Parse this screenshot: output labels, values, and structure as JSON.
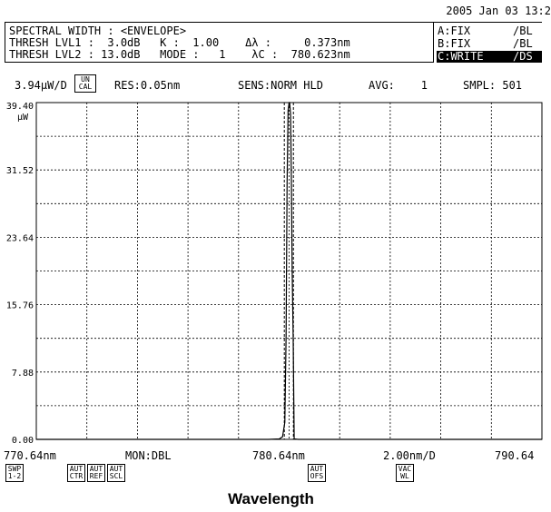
{
  "datetime": "2005 Jan 03 13:2",
  "header": {
    "line1": "SPECTRAL WIDTH : <ENVELOPE>",
    "line2": "THRESH LVL1 :  3.0dB   K :  1.00    Δλ :     0.373nm",
    "line3": "THRESH LVL2 : 13.0dB   MODE :   1    λC :  780.623nm"
  },
  "traces": [
    {
      "label": "A:FIX",
      "mode": "/BL",
      "active": false
    },
    {
      "label": "B:FIX",
      "mode": "/BL",
      "active": false
    },
    {
      "label": "C:WRITE",
      "mode": "/DS",
      "active": true
    }
  ],
  "status": {
    "scale": "3.94μW/D",
    "uncal": "UN\nCAL",
    "res": "RES:0.05nm",
    "sens": "SENS:NORM HLD",
    "avg": "AVG:    1",
    "smpl": "SMPL: 501"
  },
  "bottom": {
    "start": "770.64nm",
    "mon": "MON:DBL",
    "center": "780.64nm",
    "span": "2.00nm/D",
    "stop": "790.64"
  },
  "softkeys": [
    {
      "label": "SWP\n1-2"
    },
    {
      "label": "AUT\nCTR"
    },
    {
      "label": "AUT\nREF"
    },
    {
      "label": "AUT\nSCL"
    },
    {
      "label": "AUT\nOFS"
    },
    {
      "label": "VAC\nWL"
    }
  ],
  "chart_data": {
    "type": "line",
    "xlabel": "Wavelength",
    "ylabel_unit": "μW",
    "xlim": [
      770.64,
      790.64
    ],
    "ylim": [
      0.0,
      39.4
    ],
    "yticks": [
      "39.40",
      "31.52",
      "23.64",
      "15.76",
      "7.88",
      "0.00"
    ],
    "x_gridlines": 10,
    "y_gridlines": 10,
    "grid": true,
    "series": [
      {
        "x": [
          770.64,
          779.82,
          780.25,
          780.38,
          780.47,
          780.52,
          780.56,
          780.6,
          780.64,
          780.66,
          780.7,
          780.73,
          780.76,
          780.8,
          780.84,
          781.0,
          790.64
        ],
        "y": [
          0.0,
          0.0,
          0.05,
          0.3,
          2.0,
          12.0,
          30.0,
          38.5,
          39.4,
          39.4,
          38.0,
          30.0,
          20.0,
          12.0,
          0.05,
          0.0,
          0.0
        ]
      }
    ],
    "markers": [
      780.45,
      780.81
    ]
  }
}
